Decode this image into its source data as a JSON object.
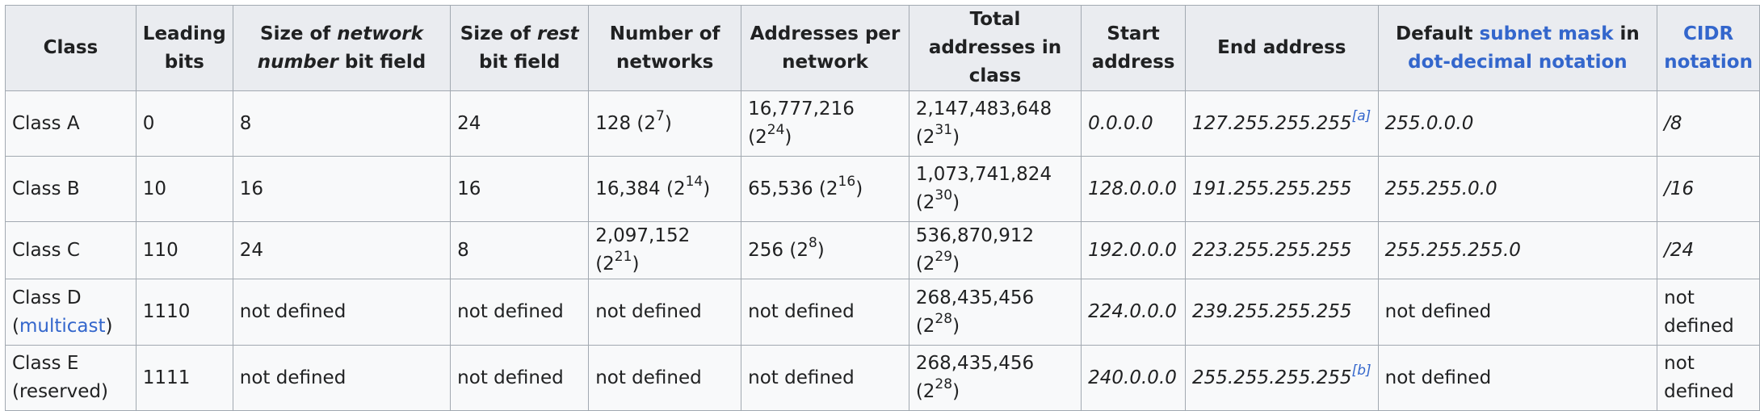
{
  "headers": {
    "class": "Class",
    "leading_bits": "Leading bits",
    "network_size_pre": "Size of ",
    "network_size_em": "network number",
    "network_size_post": " bit field",
    "rest_size_pre": "Size of ",
    "rest_size_em": "rest",
    "rest_size_post": " bit field",
    "num_networks": "Number of networks",
    "addr_per_network": "Addresses per network",
    "total_addresses": "Total addresses in class",
    "start_address": "Start address",
    "end_address": "End address",
    "mask_pre": "Default ",
    "mask_link1": "subnet mask",
    "mask_mid": " in ",
    "mask_link2": "dot-decimal notation",
    "cidr": "CIDR notation"
  },
  "rows": [
    {
      "class": "Class A",
      "leading_bits": "0",
      "network_bits": "8",
      "rest_bits": "24",
      "num_networks": "128 (2",
      "num_networks_exp": "7",
      "num_networks_end": ")",
      "addr_per": "16,777,216 (2",
      "addr_per_exp": "24",
      "addr_per_end": ")",
      "total": "2,147,483,648 (2",
      "total_exp": "31",
      "total_end": ")",
      "start": "0.0.0.0",
      "end": "127.255.255.255",
      "end_ref": "[a]",
      "mask": "255.0.0.0",
      "cidr": "/8"
    },
    {
      "class": "Class B",
      "leading_bits": "10",
      "network_bits": "16",
      "rest_bits": "16",
      "num_networks": "16,384 (2",
      "num_networks_exp": "14",
      "num_networks_end": ")",
      "addr_per": "65,536 (2",
      "addr_per_exp": "16",
      "addr_per_end": ")",
      "total": "1,073,741,824 (2",
      "total_exp": "30",
      "total_end": ")",
      "start": "128.0.0.0",
      "end": "191.255.255.255",
      "mask": "255.255.0.0",
      "cidr": "/16"
    },
    {
      "class": "Class C",
      "leading_bits": "110",
      "network_bits": "24",
      "rest_bits": "8",
      "num_networks": "2,097,152 (2",
      "num_networks_exp": "21",
      "num_networks_end": ")",
      "addr_per": "256 (2",
      "addr_per_exp": "8",
      "addr_per_end": ")",
      "total": "536,870,912 (2",
      "total_exp": "29",
      "total_end": ")",
      "start": "192.0.0.0",
      "end": "223.255.255.255",
      "mask": "255.255.255.0",
      "cidr": "/24"
    },
    {
      "class_pre": "Class D (",
      "class_link": "multicast",
      "class_post": ")",
      "leading_bits": "1110",
      "network_bits": "not defined",
      "rest_bits": "not defined",
      "num_networks": "not defined",
      "addr_per": "not defined",
      "total": "268,435,456 (2",
      "total_exp": "28",
      "total_end": ")",
      "start": "224.0.0.0",
      "end": "239.255.255.255",
      "mask": "not defined",
      "cidr": "not defined"
    },
    {
      "class": "Class E (reserved)",
      "leading_bits": "1111",
      "network_bits": "not defined",
      "rest_bits": "not defined",
      "num_networks": "not defined",
      "addr_per": "not defined",
      "total": "268,435,456 (2",
      "total_exp": "28",
      "total_end": ")",
      "start": "240.0.0.0",
      "end": "255.255.255.255",
      "end_ref": "[b]",
      "mask": "not defined",
      "cidr": "not defined"
    }
  ],
  "colors": {
    "link": "#3366cc",
    "header_bg": "#eaecf0",
    "cell_bg": "#f8f9fa",
    "border": "#a2a9b1"
  }
}
